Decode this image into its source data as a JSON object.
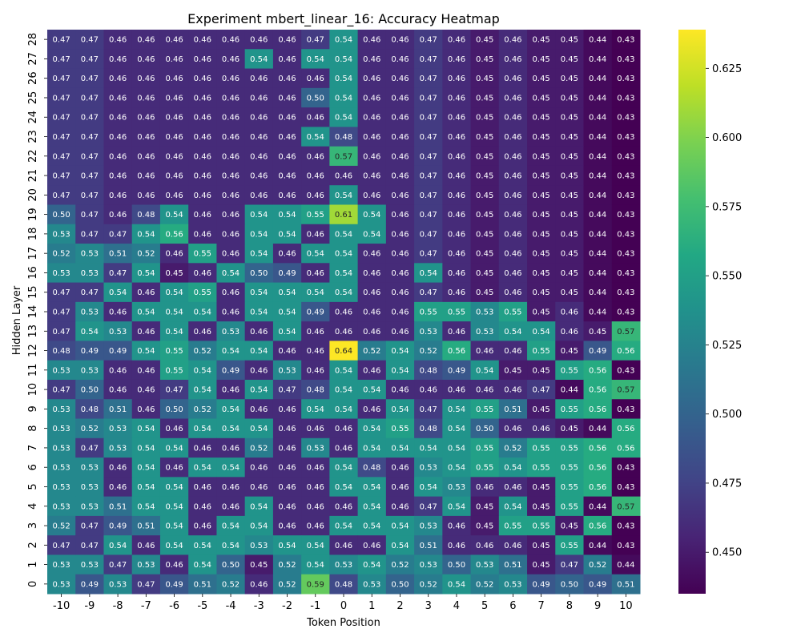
{
  "chart_data": {
    "type": "heatmap",
    "title": "Experiment mbert_linear_16: Accuracy Heatmap",
    "xlabel": "Token Position",
    "ylabel": "Hidden Layer",
    "x": [
      -10,
      -9,
      -8,
      -7,
      -6,
      -5,
      -4,
      -3,
      -2,
      -1,
      0,
      1,
      2,
      3,
      4,
      5,
      6,
      7,
      8,
      9,
      10
    ],
    "y": [
      28,
      27,
      26,
      25,
      24,
      23,
      22,
      21,
      20,
      19,
      18,
      17,
      16,
      15,
      14,
      13,
      12,
      11,
      10,
      9,
      8,
      7,
      6,
      5,
      4,
      3,
      2,
      1,
      0
    ],
    "values": [
      [
        0.47,
        0.47,
        0.46,
        0.46,
        0.46,
        0.46,
        0.46,
        0.46,
        0.46,
        0.47,
        0.54,
        0.46,
        0.46,
        0.47,
        0.46,
        0.45,
        0.46,
        0.45,
        0.45,
        0.44,
        0.43
      ],
      [
        0.47,
        0.47,
        0.46,
        0.46,
        0.46,
        0.46,
        0.46,
        0.54,
        0.46,
        0.54,
        0.54,
        0.46,
        0.46,
        0.47,
        0.46,
        0.45,
        0.46,
        0.45,
        0.45,
        0.44,
        0.43
      ],
      [
        0.47,
        0.47,
        0.46,
        0.46,
        0.46,
        0.46,
        0.46,
        0.46,
        0.46,
        0.46,
        0.54,
        0.46,
        0.46,
        0.47,
        0.46,
        0.45,
        0.46,
        0.45,
        0.45,
        0.44,
        0.43
      ],
      [
        0.47,
        0.47,
        0.46,
        0.46,
        0.46,
        0.46,
        0.46,
        0.46,
        0.46,
        0.5,
        0.54,
        0.46,
        0.46,
        0.47,
        0.46,
        0.45,
        0.46,
        0.45,
        0.45,
        0.44,
        0.43
      ],
      [
        0.47,
        0.47,
        0.46,
        0.46,
        0.46,
        0.46,
        0.46,
        0.46,
        0.46,
        0.46,
        0.54,
        0.46,
        0.46,
        0.47,
        0.46,
        0.45,
        0.46,
        0.45,
        0.45,
        0.44,
        0.43
      ],
      [
        0.47,
        0.47,
        0.46,
        0.46,
        0.46,
        0.46,
        0.46,
        0.46,
        0.46,
        0.54,
        0.48,
        0.46,
        0.46,
        0.47,
        0.46,
        0.45,
        0.46,
        0.45,
        0.45,
        0.44,
        0.43
      ],
      [
        0.47,
        0.47,
        0.46,
        0.46,
        0.46,
        0.46,
        0.46,
        0.46,
        0.46,
        0.46,
        0.57,
        0.46,
        0.46,
        0.47,
        0.46,
        0.45,
        0.46,
        0.45,
        0.45,
        0.44,
        0.43
      ],
      [
        0.47,
        0.47,
        0.46,
        0.46,
        0.46,
        0.46,
        0.46,
        0.46,
        0.46,
        0.46,
        0.46,
        0.46,
        0.46,
        0.47,
        0.46,
        0.45,
        0.46,
        0.45,
        0.45,
        0.44,
        0.43
      ],
      [
        0.47,
        0.47,
        0.46,
        0.46,
        0.46,
        0.46,
        0.46,
        0.46,
        0.46,
        0.46,
        0.54,
        0.46,
        0.46,
        0.47,
        0.46,
        0.45,
        0.46,
        0.45,
        0.45,
        0.44,
        0.43
      ],
      [
        0.5,
        0.47,
        0.46,
        0.48,
        0.54,
        0.46,
        0.46,
        0.54,
        0.54,
        0.55,
        0.61,
        0.54,
        0.46,
        0.47,
        0.46,
        0.45,
        0.46,
        0.45,
        0.45,
        0.44,
        0.43
      ],
      [
        0.53,
        0.47,
        0.47,
        0.54,
        0.56,
        0.46,
        0.46,
        0.54,
        0.54,
        0.46,
        0.54,
        0.54,
        0.46,
        0.47,
        0.46,
        0.45,
        0.46,
        0.45,
        0.45,
        0.44,
        0.43
      ],
      [
        0.52,
        0.53,
        0.51,
        0.52,
        0.46,
        0.55,
        0.46,
        0.54,
        0.46,
        0.54,
        0.54,
        0.46,
        0.46,
        0.47,
        0.46,
        0.45,
        0.46,
        0.45,
        0.45,
        0.44,
        0.43
      ],
      [
        0.53,
        0.53,
        0.47,
        0.54,
        0.45,
        0.46,
        0.54,
        0.5,
        0.49,
        0.46,
        0.54,
        0.46,
        0.46,
        0.54,
        0.46,
        0.45,
        0.46,
        0.45,
        0.45,
        0.44,
        0.43
      ],
      [
        0.47,
        0.47,
        0.54,
        0.46,
        0.54,
        0.55,
        0.46,
        0.54,
        0.54,
        0.54,
        0.54,
        0.46,
        0.46,
        0.47,
        0.46,
        0.45,
        0.46,
        0.45,
        0.45,
        0.44,
        0.43
      ],
      [
        0.47,
        0.53,
        0.46,
        0.54,
        0.54,
        0.54,
        0.46,
        0.54,
        0.54,
        0.49,
        0.46,
        0.46,
        0.46,
        0.55,
        0.55,
        0.53,
        0.55,
        0.45,
        0.46,
        0.44,
        0.43
      ],
      [
        0.47,
        0.54,
        0.53,
        0.46,
        0.54,
        0.46,
        0.53,
        0.46,
        0.54,
        0.46,
        0.46,
        0.46,
        0.46,
        0.53,
        0.46,
        0.53,
        0.54,
        0.54,
        0.46,
        0.45,
        0.57
      ],
      [
        0.48,
        0.49,
        0.49,
        0.54,
        0.55,
        0.52,
        0.54,
        0.54,
        0.46,
        0.46,
        0.64,
        0.52,
        0.54,
        0.52,
        0.56,
        0.46,
        0.46,
        0.55,
        0.45,
        0.49,
        0.56
      ],
      [
        0.53,
        0.53,
        0.46,
        0.46,
        0.55,
        0.54,
        0.49,
        0.46,
        0.53,
        0.46,
        0.54,
        0.46,
        0.54,
        0.48,
        0.49,
        0.54,
        0.45,
        0.45,
        0.55,
        0.56,
        0.43
      ],
      [
        0.47,
        0.5,
        0.46,
        0.46,
        0.47,
        0.54,
        0.46,
        0.54,
        0.47,
        0.48,
        0.54,
        0.54,
        0.46,
        0.46,
        0.46,
        0.46,
        0.46,
        0.47,
        0.44,
        0.56,
        0.57
      ],
      [
        0.53,
        0.48,
        0.51,
        0.46,
        0.5,
        0.52,
        0.54,
        0.46,
        0.46,
        0.54,
        0.54,
        0.46,
        0.54,
        0.47,
        0.54,
        0.55,
        0.51,
        0.45,
        0.55,
        0.56,
        0.43
      ],
      [
        0.53,
        0.52,
        0.53,
        0.54,
        0.46,
        0.54,
        0.54,
        0.54,
        0.46,
        0.46,
        0.46,
        0.54,
        0.55,
        0.48,
        0.54,
        0.5,
        0.46,
        0.46,
        0.45,
        0.44,
        0.56
      ],
      [
        0.53,
        0.47,
        0.53,
        0.54,
        0.54,
        0.46,
        0.46,
        0.52,
        0.46,
        0.53,
        0.46,
        0.54,
        0.54,
        0.54,
        0.54,
        0.55,
        0.52,
        0.55,
        0.55,
        0.56,
        0.56
      ],
      [
        0.53,
        0.53,
        0.46,
        0.54,
        0.46,
        0.54,
        0.54,
        0.46,
        0.46,
        0.46,
        0.54,
        0.48,
        0.46,
        0.53,
        0.54,
        0.55,
        0.54,
        0.55,
        0.55,
        0.56,
        0.43
      ],
      [
        0.53,
        0.53,
        0.46,
        0.54,
        0.54,
        0.46,
        0.46,
        0.46,
        0.46,
        0.46,
        0.54,
        0.54,
        0.46,
        0.54,
        0.53,
        0.46,
        0.46,
        0.45,
        0.55,
        0.56,
        0.43
      ],
      [
        0.53,
        0.53,
        0.51,
        0.54,
        0.54,
        0.46,
        0.46,
        0.54,
        0.46,
        0.46,
        0.46,
        0.54,
        0.46,
        0.47,
        0.54,
        0.45,
        0.54,
        0.45,
        0.55,
        0.44,
        0.57
      ],
      [
        0.52,
        0.47,
        0.49,
        0.51,
        0.54,
        0.46,
        0.54,
        0.54,
        0.46,
        0.46,
        0.54,
        0.54,
        0.54,
        0.53,
        0.46,
        0.45,
        0.55,
        0.55,
        0.45,
        0.56,
        0.43
      ],
      [
        0.47,
        0.47,
        0.54,
        0.46,
        0.54,
        0.54,
        0.54,
        0.53,
        0.54,
        0.54,
        0.46,
        0.46,
        0.54,
        0.51,
        0.46,
        0.46,
        0.46,
        0.45,
        0.55,
        0.44,
        0.43
      ],
      [
        0.53,
        0.53,
        0.47,
        0.53,
        0.46,
        0.54,
        0.5,
        0.45,
        0.52,
        0.54,
        0.53,
        0.54,
        0.52,
        0.53,
        0.5,
        0.53,
        0.51,
        0.45,
        0.47,
        0.52,
        0.44
      ],
      [
        0.53,
        0.49,
        0.53,
        0.47,
        0.49,
        0.51,
        0.52,
        0.46,
        0.52,
        0.59,
        0.48,
        0.53,
        0.5,
        0.52,
        0.54,
        0.52,
        0.53,
        0.49,
        0.5,
        0.49,
        0.51
      ]
    ],
    "vmin": 0.435,
    "vmax": 0.639,
    "colormap": "viridis",
    "colorbar_ticks": [
      "0.450",
      "0.475",
      "0.500",
      "0.525",
      "0.550",
      "0.575",
      "0.600",
      "0.625"
    ],
    "grid": false
  }
}
